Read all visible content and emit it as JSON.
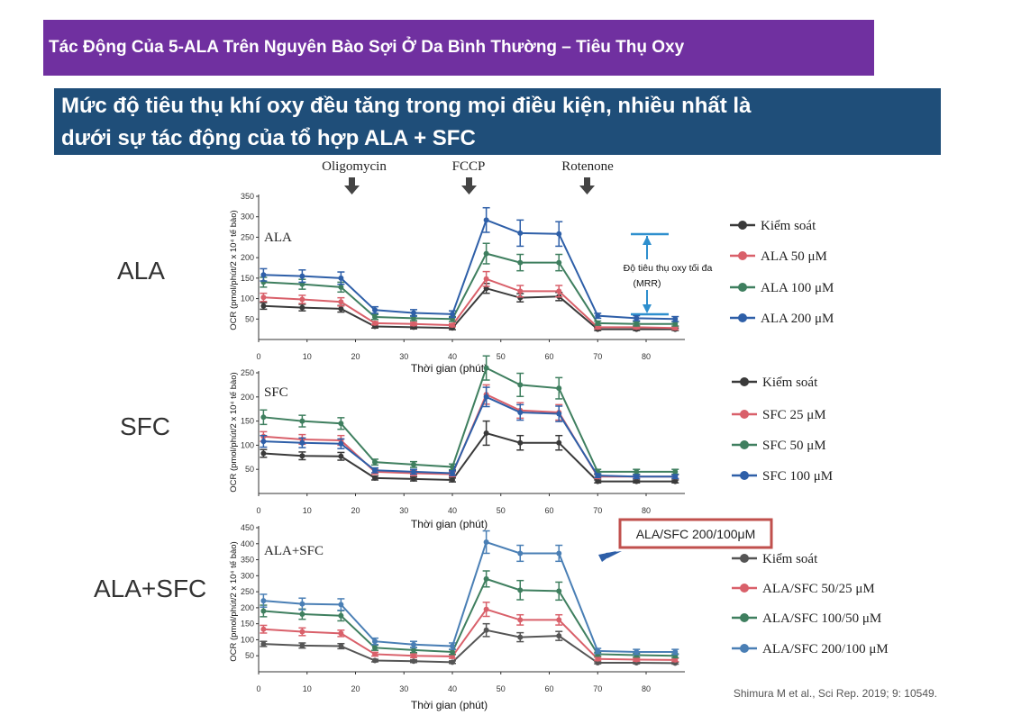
{
  "header": {
    "title": "Tác Động Của 5-ALA Trên Nguyên Bào Sợi Ở Da Bình Thường – Tiêu Thụ Oxy"
  },
  "headline": {
    "line1": "Mức độ tiêu thụ khí oxy đều tăng trong mọi điều kiện, nhiều nhất là",
    "line2": "dưới sự tác động của tổ hợp ALA + SFC"
  },
  "row_labels": [
    "ALA",
    "SFC",
    "ALA+SFC"
  ],
  "injections": [
    "Oligomycin",
    "FCCP",
    "Rotenone"
  ],
  "mrr_annotation": {
    "line1": "Độ tiêu thụ oxy tối đa",
    "line2": "(MRR)"
  },
  "callout": "ALA/SFC 200/100μM",
  "citation": "Shimura M et al., Sci Rep. 2019; 9: 10549.",
  "colors": {
    "control": "#3a3a3a",
    "red": "#d9606a",
    "green": "#3f7f5f",
    "blue": "#2e5fa8",
    "purple": "#7030a0",
    "navy": "#1f4e79",
    "callout_border": "#c0504d"
  },
  "chart_data": [
    {
      "type": "line",
      "panel_label": "ALA",
      "xlabel": "Thời gian (phút)",
      "ylabel": "OCR (pmol/phút/2 x 10⁴ tế bào)",
      "x": [
        1,
        9,
        17,
        24,
        32,
        40,
        47,
        54,
        62,
        70,
        78,
        86
      ],
      "xlim": [
        0,
        88
      ],
      "ylim": [
        0,
        350
      ],
      "xticks": [
        0,
        10,
        20,
        30,
        40,
        50,
        60,
        70,
        80
      ],
      "yticks": [
        50,
        100,
        150,
        200,
        250,
        300,
        350
      ],
      "series": [
        {
          "name": "Kiểm soát",
          "color": "#3a3a3a",
          "values": [
            82,
            78,
            75,
            32,
            30,
            28,
            125,
            102,
            105,
            25,
            25,
            25
          ],
          "err": [
            8,
            8,
            8,
            4,
            4,
            4,
            12,
            10,
            10,
            3,
            3,
            3
          ]
        },
        {
          "name": "ALA 50 μM",
          "color": "#d9606a",
          "values": [
            103,
            98,
            92,
            40,
            38,
            35,
            148,
            118,
            118,
            30,
            30,
            28
          ],
          "err": [
            10,
            10,
            10,
            4,
            4,
            4,
            18,
            14,
            14,
            4,
            4,
            4
          ]
        },
        {
          "name": "ALA 100 μM",
          "color": "#3f7f5f",
          "values": [
            140,
            135,
            128,
            55,
            52,
            50,
            210,
            188,
            188,
            40,
            38,
            38
          ],
          "err": [
            12,
            12,
            12,
            6,
            6,
            6,
            25,
            20,
            20,
            5,
            5,
            5
          ]
        },
        {
          "name": "ALA 200 μM",
          "color": "#2e5fa8",
          "values": [
            158,
            155,
            150,
            72,
            65,
            62,
            292,
            260,
            258,
            58,
            52,
            50
          ],
          "err": [
            15,
            15,
            15,
            8,
            8,
            8,
            30,
            32,
            30,
            6,
            6,
            6
          ]
        }
      ]
    },
    {
      "type": "line",
      "panel_label": "SFC",
      "xlabel": "Thời gian (phút)",
      "ylabel": "OCR (pmol/phút/2 x 10⁴ tế bào)",
      "x": [
        1,
        9,
        17,
        24,
        32,
        40,
        47,
        54,
        62,
        70,
        78,
        86
      ],
      "xlim": [
        0,
        88
      ],
      "ylim": [
        0,
        250
      ],
      "xticks": [
        0,
        10,
        20,
        30,
        40,
        50,
        60,
        70,
        80
      ],
      "yticks": [
        50,
        100,
        150,
        200,
        250
      ],
      "series": [
        {
          "name": "Kiểm soát",
          "color": "#3a3a3a",
          "values": [
            83,
            78,
            77,
            32,
            30,
            28,
            125,
            105,
            105,
            25,
            25,
            25
          ],
          "err": [
            8,
            8,
            8,
            4,
            4,
            4,
            25,
            15,
            15,
            3,
            3,
            3
          ]
        },
        {
          "name": "SFC 25 μM",
          "color": "#d9606a",
          "values": [
            118,
            112,
            110,
            45,
            42,
            40,
            205,
            172,
            168,
            35,
            35,
            35
          ],
          "err": [
            10,
            10,
            10,
            5,
            5,
            5,
            20,
            16,
            16,
            4,
            4,
            4
          ]
        },
        {
          "name": "SFC 50 μM",
          "color": "#3f7f5f",
          "values": [
            158,
            150,
            145,
            65,
            60,
            55,
            260,
            225,
            218,
            45,
            45,
            45
          ],
          "err": [
            15,
            12,
            12,
            6,
            6,
            6,
            25,
            24,
            22,
            5,
            5,
            5
          ]
        },
        {
          "name": "SFC 100 μM",
          "color": "#2e5fa8",
          "values": [
            108,
            105,
            103,
            48,
            45,
            42,
            200,
            168,
            165,
            37,
            35,
            35
          ],
          "err": [
            12,
            10,
            10,
            5,
            5,
            5,
            20,
            16,
            16,
            4,
            4,
            4
          ]
        }
      ]
    },
    {
      "type": "line",
      "panel_label": "ALA+SFC",
      "xlabel": "Thời gian (phút)",
      "ylabel": "OCR (pmol/phút/2 x 10⁴ tế bào)",
      "x": [
        1,
        9,
        17,
        24,
        32,
        40,
        47,
        54,
        62,
        70,
        78,
        86
      ],
      "xlim": [
        0,
        88
      ],
      "ylim": [
        0,
        450
      ],
      "xticks": [
        0,
        10,
        20,
        30,
        40,
        50,
        60,
        70,
        80
      ],
      "yticks": [
        50,
        100,
        150,
        200,
        250,
        300,
        350,
        400,
        450
      ],
      "series": [
        {
          "name": "Kiểm soát",
          "color": "#555555",
          "values": [
            87,
            82,
            80,
            35,
            33,
            30,
            130,
            108,
            112,
            28,
            28,
            27
          ],
          "err": [
            8,
            8,
            8,
            4,
            4,
            4,
            20,
            14,
            14,
            3,
            3,
            3
          ]
        },
        {
          "name": "ALA/SFC 50/25 μM",
          "color": "#d9606a",
          "values": [
            133,
            125,
            120,
            55,
            50,
            48,
            195,
            162,
            162,
            40,
            38,
            37
          ],
          "err": [
            12,
            12,
            10,
            6,
            6,
            6,
            22,
            16,
            16,
            5,
            5,
            5
          ]
        },
        {
          "name": "ALA/SFC 100/50 μM",
          "color": "#3f7f5f",
          "values": [
            190,
            180,
            175,
            75,
            68,
            62,
            290,
            255,
            252,
            55,
            52,
            50
          ],
          "err": [
            18,
            16,
            16,
            8,
            8,
            8,
            25,
            30,
            28,
            6,
            6,
            6
          ]
        },
        {
          "name": "ALA/SFC 200/100 μM",
          "color": "#4a7fb5",
          "values": [
            222,
            212,
            210,
            95,
            85,
            80,
            405,
            370,
            370,
            65,
            62,
            62
          ],
          "err": [
            20,
            18,
            18,
            10,
            10,
            10,
            35,
            25,
            25,
            8,
            8,
            8
          ]
        }
      ]
    }
  ]
}
